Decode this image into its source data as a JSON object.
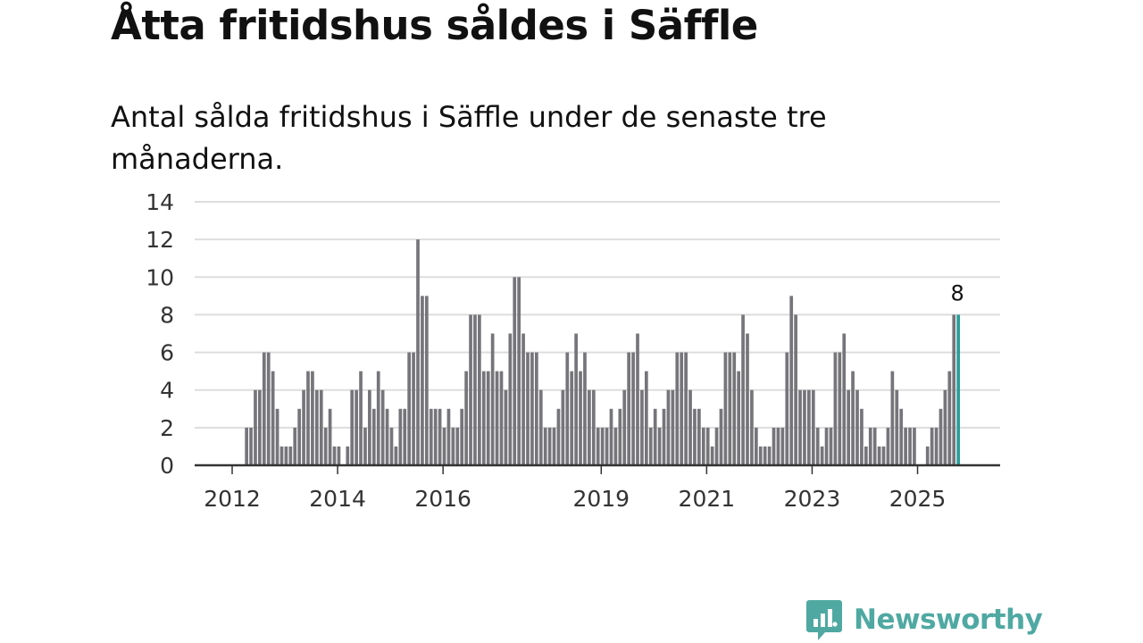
{
  "title": "Åtta fritidshus såldes i Säffle",
  "subtitle": "Antal sålda fritidshus i Säffle under de senaste tre månaderna.",
  "colors": {
    "bar": "#75757a",
    "highlight": "#2a9d99",
    "grid": "#dddddd",
    "axis": "#333333",
    "brand": "#4fa9a2"
  },
  "chart_data": {
    "type": "bar",
    "title": "Åtta fritidshus såldes i Säffle",
    "xlabel": "",
    "ylabel": "",
    "ylim": [
      0,
      14
    ],
    "yticks": [
      "0",
      "2",
      "4",
      "6",
      "8",
      "10",
      "12",
      "14"
    ],
    "xticks": [
      {
        "label": "2012",
        "month_index": 0
      },
      {
        "label": "2014",
        "month_index": 24
      },
      {
        "label": "2016",
        "month_index": 48
      },
      {
        "label": "2019",
        "month_index": 84
      },
      {
        "label": "2021",
        "month_index": 108
      },
      {
        "label": "2023",
        "month_index": 132
      },
      {
        "label": "2025",
        "month_index": 156
      }
    ],
    "start": "2011-01",
    "values": [
      0,
      0,
      0,
      0,
      0,
      0,
      0,
      0,
      0,
      0,
      0,
      2,
      2,
      4,
      4,
      6,
      6,
      5,
      3,
      1,
      1,
      1,
      2,
      3,
      4,
      5,
      5,
      4,
      4,
      2,
      3,
      1,
      1,
      0,
      1,
      4,
      4,
      5,
      2,
      4,
      3,
      5,
      4,
      3,
      2,
      1,
      3,
      3,
      6,
      6,
      12,
      9,
      9,
      3,
      3,
      3,
      2,
      3,
      2,
      2,
      3,
      5,
      8,
      8,
      8,
      5,
      5,
      7,
      5,
      5,
      4,
      7,
      10,
      10,
      7,
      6,
      6,
      6,
      4,
      2,
      2,
      2,
      3,
      4,
      6,
      5,
      7,
      5,
      6,
      4,
      4,
      2,
      2,
      2,
      3,
      2,
      3,
      4,
      6,
      6,
      7,
      4,
      5,
      2,
      3,
      2,
      3,
      4,
      4,
      6,
      6,
      6,
      4,
      3,
      3,
      2,
      2,
      1,
      2,
      3,
      6,
      6,
      6,
      5,
      8,
      7,
      4,
      2,
      1,
      1,
      1,
      2,
      2,
      2,
      6,
      9,
      8,
      4,
      4,
      4,
      4,
      2,
      1,
      2,
      2,
      6,
      6,
      7,
      4,
      5,
      4,
      3,
      1,
      2,
      2,
      1,
      1,
      2,
      5,
      4,
      3,
      2,
      2,
      2,
      0,
      0,
      1,
      2,
      2,
      3,
      4,
      5,
      8,
      8
    ],
    "highlight_index": 173,
    "data_label": "8"
  },
  "logo": {
    "text": "Newsworthy"
  }
}
